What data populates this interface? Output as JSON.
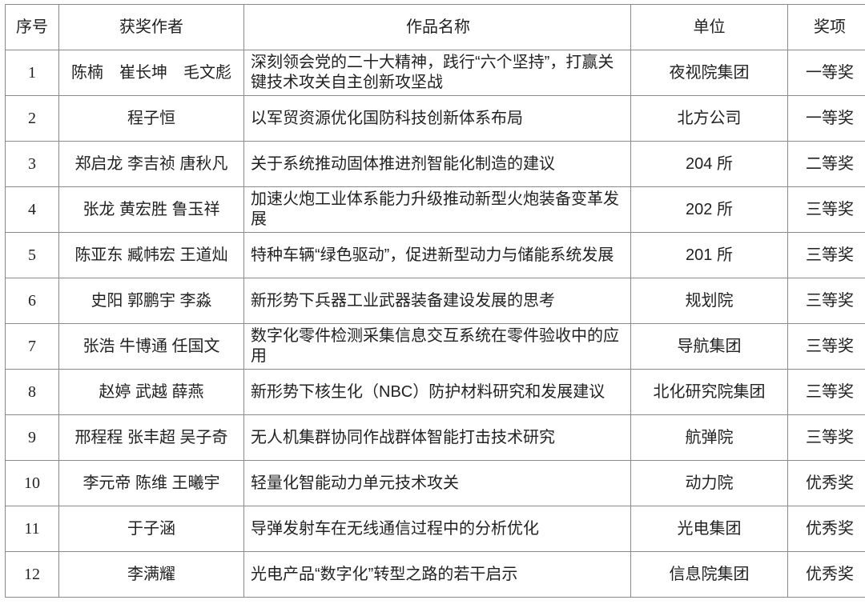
{
  "headers": [
    "序号",
    "获奖作者",
    "作品名称",
    "单位",
    "奖项"
  ],
  "rows": [
    {
      "no": "1",
      "authors": "陈楠　崔长坤　毛文彪",
      "title": "深刻领会党的二十大精神，践行“六个坚持”，打赢关键技术攻关自主创新攻坚战",
      "unit": "夜视院集团",
      "award": "一等奖"
    },
    {
      "no": "2",
      "authors": "程子恒",
      "title": "以军贸资源优化国防科技创新体系布局",
      "unit": "北方公司",
      "award": "一等奖"
    },
    {
      "no": "3",
      "authors": "郑启龙 李吉祯 唐秋凡",
      "title": "关于系统推动固体推进剂智能化制造的建议",
      "unit": "204 所",
      "award": "二等奖"
    },
    {
      "no": "4",
      "authors": "张龙 黄宏胜 鲁玉祥",
      "title": "加速火炮工业体系能力升级推动新型火炮装备变革发展",
      "unit": "202 所",
      "award": "三等奖"
    },
    {
      "no": "5",
      "authors": "陈亚东 臧帏宏 王道灿",
      "title": "特种车辆“绿色驱动”，促进新型动力与储能系统发展",
      "unit": "201 所",
      "award": "三等奖"
    },
    {
      "no": "6",
      "authors": "史阳 郭鹏宇 李淼",
      "title": "新形势下兵器工业武器装备建设发展的思考",
      "unit": "规划院",
      "award": "三等奖"
    },
    {
      "no": "7",
      "authors": "张浩 牛博通 任国文",
      "title": "数字化零件检测采集信息交互系统在零件验收中的应用",
      "unit": "导航集团",
      "award": "三等奖"
    },
    {
      "no": "8",
      "authors": "赵婷 武越 薛燕",
      "title": "新形势下核生化（NBC）防护材料研究和发展建议",
      "unit": "北化研究院集团",
      "award": "三等奖"
    },
    {
      "no": "9",
      "authors": "邢程程 张丰超 吴子奇",
      "title": "无人机集群协同作战群体智能打击技术研究",
      "unit": "航弹院",
      "award": "三等奖"
    },
    {
      "no": "10",
      "authors": "李元帝 陈维 王曦宇",
      "title": "轻量化智能动力单元技术攻关",
      "unit": "动力院",
      "award": "优秀奖"
    },
    {
      "no": "11",
      "authors": "于子涵",
      "title": "导弹发射车在无线通信过程中的分析优化",
      "unit": "光电集团",
      "award": "优秀奖"
    },
    {
      "no": "12",
      "authors": "李满耀",
      "title": "光电产品“数字化”转型之路的若干启示",
      "unit": "信息院集团",
      "award": "优秀奖"
    }
  ]
}
